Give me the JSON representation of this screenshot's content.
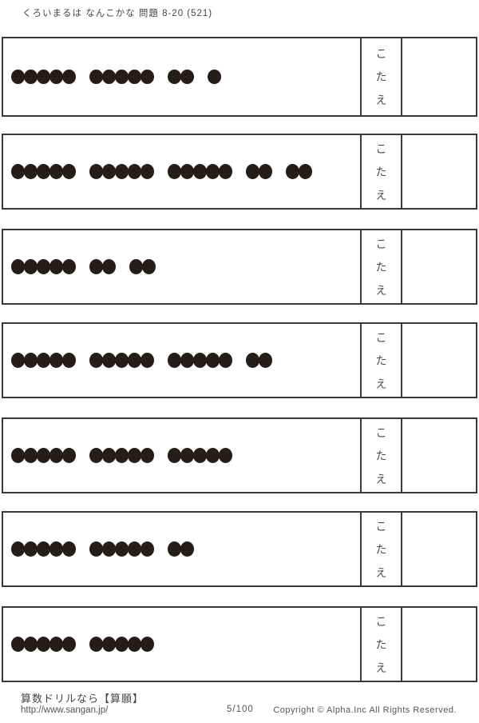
{
  "page": {
    "title": "くろいまるは なんこかな 問題 8-20 (521)"
  },
  "answer_label": "こたえ",
  "answer_label_chars": [
    "こ",
    "た",
    "え"
  ],
  "rows": [
    {
      "groups": [
        5,
        5,
        2,
        1
      ]
    },
    {
      "groups": [
        5,
        5,
        5,
        2,
        2
      ]
    },
    {
      "groups": [
        5,
        2,
        2
      ]
    },
    {
      "groups": [
        5,
        5,
        5,
        2
      ]
    },
    {
      "groups": [
        5,
        5,
        5
      ]
    },
    {
      "groups": [
        5,
        5,
        2
      ]
    },
    {
      "groups": [
        5,
        5
      ]
    }
  ],
  "footer": {
    "promo": "算数ドリルなら【算願】",
    "url": "http://www.sangan.jp/",
    "page_number": "5/100",
    "copyright": "Copyright © Alpha.Inc All Rights Reserved."
  },
  "colors": {
    "dot": "#261d19",
    "border": "#3e3734",
    "text_dark": "#4a443f",
    "text_gray": "#5a5550"
  }
}
